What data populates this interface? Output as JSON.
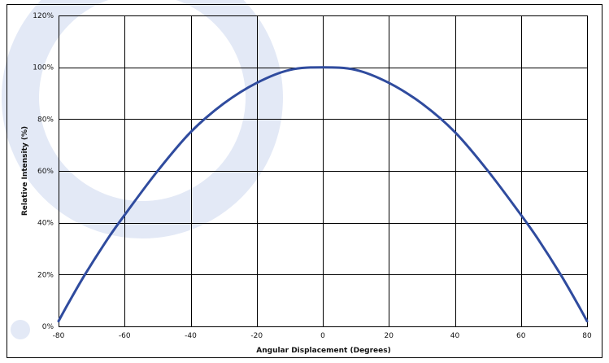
{
  "chart_data": {
    "type": "line",
    "xlabel": "Angular Displacement (Degrees)",
    "ylabel": "Relative Intensity (%)",
    "xlim": [
      -80,
      80
    ],
    "ylim": [
      0,
      120
    ],
    "x_ticks": [
      "-80",
      "-60",
      "-40",
      "-20",
      "0",
      "20",
      "40",
      "60",
      "80"
    ],
    "y_ticks": [
      "0%",
      "20%",
      "40%",
      "60%",
      "80%",
      "100%",
      "120%"
    ],
    "grid": true,
    "series": [
      {
        "color": "#2f4b9e",
        "x": [
          -80,
          -77,
          -72,
          -65,
          -60,
          -50,
          -40,
          -30,
          -20,
          -10,
          0,
          10,
          20,
          30,
          40,
          50,
          60,
          65,
          72,
          77,
          80
        ],
        "y": [
          2,
          9,
          20,
          34,
          43,
          60,
          75,
          86,
          94,
          99,
          100,
          99,
          94,
          86,
          75,
          60,
          43,
          34,
          20,
          9,
          2
        ]
      }
    ]
  },
  "colors": {
    "series": "#2f4b9e",
    "grid": "#000000",
    "background": "#ffffff",
    "watermark": "#e3e9f6"
  }
}
